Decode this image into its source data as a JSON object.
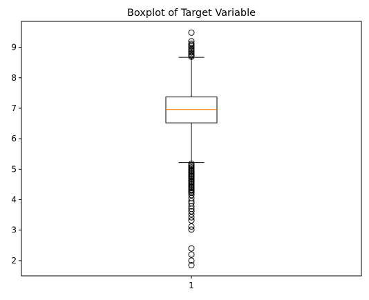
{
  "chart_data": {
    "type": "boxplot",
    "title": "Boxplot of Target Variable",
    "xlabel": "",
    "ylabel": "",
    "categories": [
      "1"
    ],
    "ylim": [
      1.5,
      9.85
    ],
    "yticks": [
      2,
      3,
      4,
      5,
      6,
      7,
      8,
      9
    ],
    "grid": false,
    "box": {
      "whisker_low": 5.22,
      "q1": 6.52,
      "median": 6.96,
      "q3": 7.37,
      "whisker_high": 8.67
    },
    "outliers": [
      9.48,
      9.2,
      9.12,
      9.08,
      9.03,
      8.98,
      8.93,
      8.88,
      8.83,
      8.78,
      8.73,
      8.69,
      5.18,
      5.14,
      5.1,
      5.06,
      5.02,
      4.98,
      4.94,
      4.9,
      4.86,
      4.82,
      4.78,
      4.74,
      4.7,
      4.66,
      4.62,
      4.58,
      4.54,
      4.5,
      4.46,
      4.42,
      4.38,
      4.34,
      4.3,
      4.26,
      4.22,
      4.15,
      4.05,
      3.95,
      3.88,
      3.78,
      3.7,
      3.62,
      3.52,
      3.42,
      3.32,
      3.12,
      3.02,
      2.4,
      2.2,
      2.0,
      1.85
    ],
    "colors": {
      "box": "#000000",
      "median": "#ff7f0e",
      "outlier_edge": "#000000"
    }
  }
}
